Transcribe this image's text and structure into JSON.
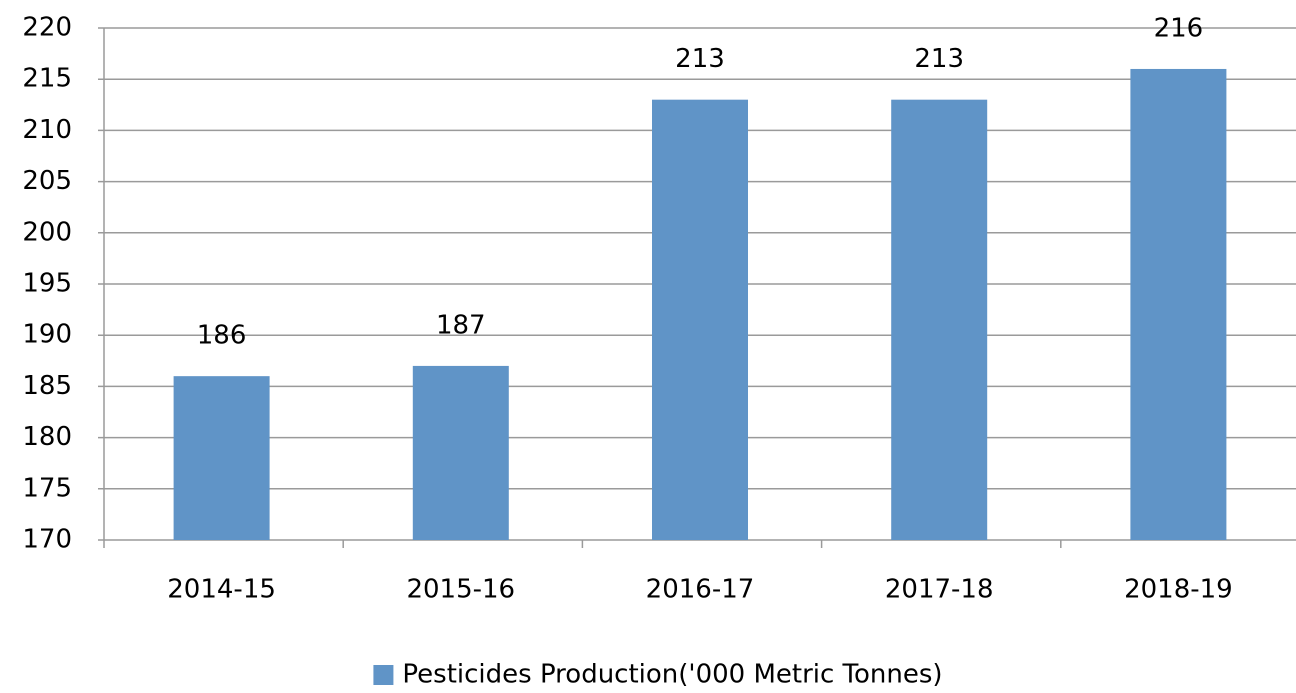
{
  "chart_data": {
    "type": "bar",
    "categories": [
      "2014-15",
      "2015-16",
      "2016-17",
      "2017-18",
      "2018-19"
    ],
    "series": [
      {
        "name": "Pesticides Production('000 Metric Tonnes)",
        "color": "#6094c7",
        "values": [
          186,
          187,
          213,
          213,
          216
        ]
      }
    ],
    "ylim": [
      170,
      220
    ],
    "yticks": [
      170,
      175,
      180,
      185,
      190,
      195,
      200,
      205,
      210,
      215,
      220
    ],
    "grid": true,
    "legend": "bottom"
  }
}
